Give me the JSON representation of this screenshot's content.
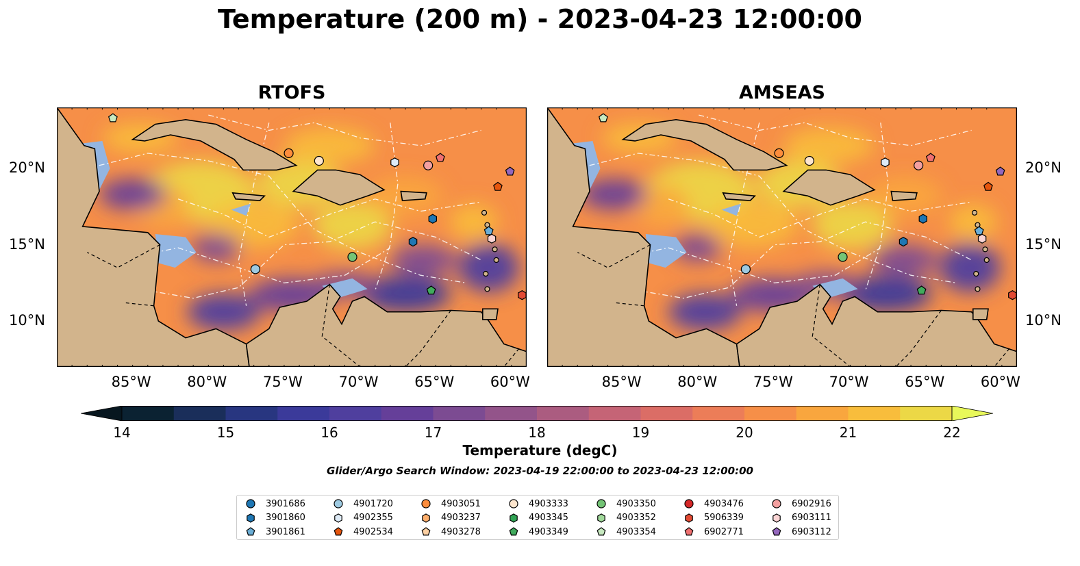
{
  "title": "Temperature (200 m) - 2023-04-23 12:00:00",
  "panels": [
    {
      "title": "RTOFS",
      "deep_fill": "#0b2232"
    },
    {
      "title": "AMSEAS",
      "deep_fill": "#92b4e0"
    }
  ],
  "x_ticks": [
    "85°W",
    "80°W",
    "75°W",
    "70°W",
    "65°W",
    "60°W"
  ],
  "y_ticks": [
    "20°N",
    "15°N",
    "10°N"
  ],
  "lon_range": [
    -90,
    -59
  ],
  "lat_range": [
    7,
    24
  ],
  "colorbar": {
    "label": "Temperature (degC)",
    "ticks": [
      "14",
      "15",
      "16",
      "17",
      "18",
      "19",
      "20",
      "21",
      "22"
    ],
    "range": [
      14,
      22
    ],
    "colors": [
      "#0b2232",
      "#1a2e5a",
      "#283680",
      "#3b3a9a",
      "#4f3f9e",
      "#653f99",
      "#7c4b92",
      "#93548a",
      "#ab5c80",
      "#c56476",
      "#db6d66",
      "#ec7d58",
      "#f68f48",
      "#f9a63e",
      "#f8bd3c",
      "#ecd846"
    ],
    "extend_low": "#07161f",
    "extend_high": "#e8f85a"
  },
  "search_window": "Glider/Argo Search Window: 2023-04-19 22:00:00 to 2023-04-23 12:00:00",
  "land_color": "#d2b48c",
  "shelf_color": "#93b5e1",
  "legend": [
    {
      "id": "3901686",
      "marker": "circle",
      "color": "#1f77b4"
    },
    {
      "id": "3901860",
      "marker": "hexagon",
      "color": "#1f77b4"
    },
    {
      "id": "3901861",
      "marker": "pentagon",
      "color": "#6baed6"
    },
    {
      "id": "4901720",
      "marker": "circle",
      "color": "#9ecae1"
    },
    {
      "id": "4902355",
      "marker": "hexagon",
      "color": "#deebf7"
    },
    {
      "id": "4902534",
      "marker": "pentagon",
      "color": "#e6550d"
    },
    {
      "id": "4903051",
      "marker": "circle",
      "color": "#fd8d3c"
    },
    {
      "id": "4903237",
      "marker": "hexagon",
      "color": "#fdae6b"
    },
    {
      "id": "4903278",
      "marker": "pentagon",
      "color": "#fdd0a2"
    },
    {
      "id": "4903333",
      "marker": "circle",
      "color": "#fee6ce"
    },
    {
      "id": "4903345",
      "marker": "hexagon",
      "color": "#31a354"
    },
    {
      "id": "4903349",
      "marker": "pentagon",
      "color": "#41ab5d"
    },
    {
      "id": "4903350",
      "marker": "circle",
      "color": "#74c476"
    },
    {
      "id": "4903352",
      "marker": "hexagon",
      "color": "#a1d99b"
    },
    {
      "id": "4903354",
      "marker": "pentagon",
      "color": "#c7e9c0"
    },
    {
      "id": "4903476",
      "marker": "circle",
      "color": "#d62728"
    },
    {
      "id": "5906339",
      "marker": "hexagon",
      "color": "#e34a33"
    },
    {
      "id": "6902771",
      "marker": "pentagon",
      "color": "#f07070"
    },
    {
      "id": "6902916",
      "marker": "circle",
      "color": "#f4a0a0"
    },
    {
      "id": "6903111",
      "marker": "hexagon",
      "color": "#fcd5d5"
    },
    {
      "id": "6903112",
      "marker": "pentagon",
      "color": "#9467bd"
    }
  ],
  "platforms": [
    {
      "id": "4903354",
      "lon": -86.3,
      "lat": 23.3
    },
    {
      "id": "4903051",
      "lon": -74.7,
      "lat": 21.0
    },
    {
      "id": "4903333",
      "lon": -72.7,
      "lat": 20.5
    },
    {
      "id": "4902355",
      "lon": -67.7,
      "lat": 20.4
    },
    {
      "id": "6902916",
      "lon": -65.5,
      "lat": 20.2
    },
    {
      "id": "6902771",
      "lon": -64.7,
      "lat": 20.7
    },
    {
      "id": "6903112",
      "lon": -60.1,
      "lat": 19.8
    },
    {
      "id": "4902534",
      "lon": -60.9,
      "lat": 18.8
    },
    {
      "id": "3901860",
      "lon": -65.2,
      "lat": 16.7
    },
    {
      "id": "3901861",
      "lon": -61.5,
      "lat": 15.9
    },
    {
      "id": "3901860",
      "lon": -66.5,
      "lat": 15.2
    },
    {
      "id": "6903111",
      "lon": -61.3,
      "lat": 15.4
    },
    {
      "id": "4903350",
      "lon": -70.5,
      "lat": 14.2
    },
    {
      "id": "4901720",
      "lon": -76.9,
      "lat": 13.4
    },
    {
      "id": "4903349",
      "lon": -65.3,
      "lat": 12.0
    },
    {
      "id": "5906339",
      "lon": -59.3,
      "lat": 11.7
    }
  ]
}
